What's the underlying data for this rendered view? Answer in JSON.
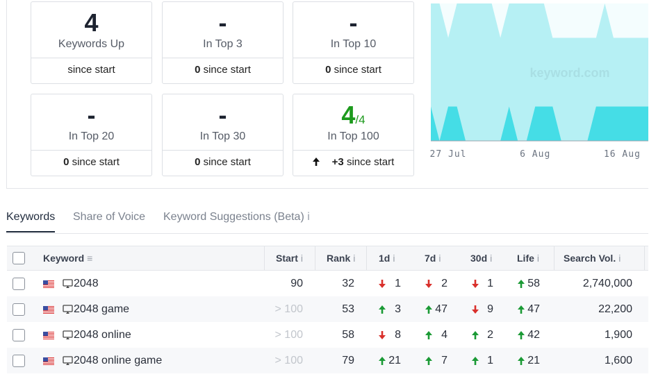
{
  "cards": [
    {
      "value": "4",
      "label": "Keywords Up",
      "footer": "since start"
    },
    {
      "value": "-",
      "label": "In Top 3",
      "footer_bold": "0",
      "footer": "since start"
    },
    {
      "value": "-",
      "label": "In Top 10",
      "footer_bold": "0",
      "footer": "since start"
    },
    {
      "value": "-",
      "label": "In Top 20",
      "footer_bold": "0",
      "footer": "since start"
    },
    {
      "value": "-",
      "label": "In Top 30",
      "footer_bold": "0",
      "footer": "since start"
    },
    {
      "value": "4",
      "value_suffix": "/4",
      "value_color": "green",
      "label": "In Top 100",
      "footer_arrow": "up",
      "footer_bold": "+3",
      "footer": "since start"
    }
  ],
  "chart_data": {
    "type": "area",
    "watermark": "keyword.com",
    "categories": [
      null,
      null,
      "27 Jul",
      null,
      null,
      null,
      null,
      null,
      null,
      null,
      null,
      null,
      "6 Aug",
      null,
      null,
      null,
      null,
      null,
      null,
      null,
      null,
      null,
      "16 Aug",
      null,
      null,
      null
    ],
    "ylim": [
      0,
      4
    ],
    "series": [
      {
        "color": "#b6f0f4",
        "values": [
          4,
          4,
          3,
          4,
          4,
          4,
          4,
          4,
          3,
          4,
          4,
          4,
          4,
          4,
          3,
          3,
          3,
          3,
          3,
          3,
          4,
          3,
          3,
          3,
          3,
          3
        ]
      },
      {
        "color": "#45dde6",
        "values": [
          1,
          0,
          1,
          1,
          0,
          0,
          0,
          0,
          0,
          1,
          0,
          0,
          1,
          1,
          1,
          0,
          0,
          0,
          0,
          1,
          1,
          1,
          1,
          1,
          1,
          1
        ]
      }
    ]
  },
  "tabs": [
    {
      "label": "Keywords",
      "active": true
    },
    {
      "label": "Share of Voice"
    },
    {
      "label": "Keyword Suggestions (Beta)",
      "info": "i"
    }
  ],
  "table": {
    "headers": [
      {
        "label": "Keyword",
        "sort": "≡"
      },
      {
        "label": "Start",
        "info": "i"
      },
      {
        "label": "Rank",
        "info": "i"
      },
      {
        "label": "1d",
        "info": "i"
      },
      {
        "label": "7d",
        "info": "i"
      },
      {
        "label": "30d",
        "info": "i"
      },
      {
        "label": "Life",
        "info": "i"
      },
      {
        "label": "Search Vol.",
        "info": "i"
      }
    ],
    "rows": [
      {
        "keyword": "2048",
        "start": "90",
        "rank": 32,
        "d1": {
          "dir": "down",
          "value": 1
        },
        "d7": {
          "dir": "down",
          "value": 2
        },
        "d30": {
          "dir": "down",
          "value": 1
        },
        "life": {
          "dir": "up",
          "value": 58
        },
        "search_vol": "2,740,000"
      },
      {
        "keyword": "2048 game",
        "start": "> 100",
        "rank": 53,
        "d1": {
          "dir": "up",
          "value": 3
        },
        "d7": {
          "dir": "up",
          "value": 47
        },
        "d30": {
          "dir": "down",
          "value": 9
        },
        "life": {
          "dir": "up",
          "value": 47
        },
        "search_vol": "22,200"
      },
      {
        "keyword": "2048 online",
        "start": "> 100",
        "rank": 58,
        "d1": {
          "dir": "down",
          "value": 8
        },
        "d7": {
          "dir": "up",
          "value": 4
        },
        "d30": {
          "dir": "up",
          "value": 2
        },
        "life": {
          "dir": "up",
          "value": 42
        },
        "search_vol": "1,900"
      },
      {
        "keyword": "2048 online game",
        "start": "> 100",
        "rank": 79,
        "d1": {
          "dir": "up",
          "value": 21
        },
        "d7": {
          "dir": "up",
          "value": 7
        },
        "d30": {
          "dir": "up",
          "value": 1
        },
        "life": {
          "dir": "up",
          "value": 21
        },
        "search_vol": "1,600"
      }
    ]
  }
}
